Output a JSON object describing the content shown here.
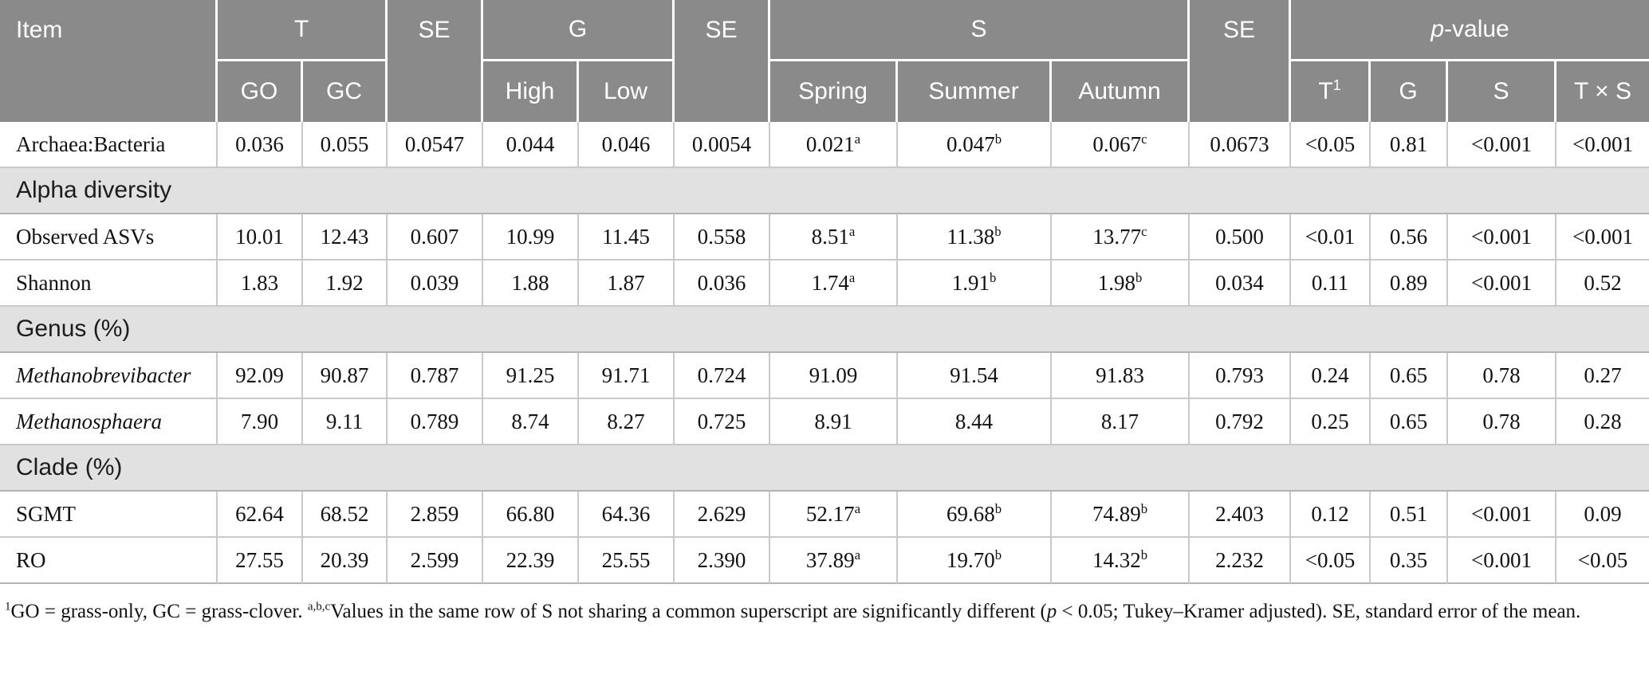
{
  "colors": {
    "header_bg": "#8a8a8a",
    "header_text": "#ffffff",
    "section_bg": "#e1e1e1",
    "grid_line": "#c9c9c9",
    "section_line": "#b3b3b3",
    "text": "#121212"
  },
  "header": {
    "item": "Item",
    "groups": {
      "t": "T",
      "se1": "SE",
      "g": "G",
      "se2": "SE",
      "s": "S",
      "se3": "SE",
      "pvalue_italic": "p",
      "pvalue_rest": "-value"
    },
    "sub": {
      "go": "GO",
      "gc": "GC",
      "high": "High",
      "low": "Low",
      "spring": "Spring",
      "summer": "Summer",
      "autumn": "Autumn",
      "t1_base": "T",
      "t1_sup": "1",
      "g": "G",
      "s": "S",
      "txs": "T × S"
    }
  },
  "table": {
    "column_keys": [
      "GO",
      "GC",
      "SE",
      "High",
      "Low",
      "SE",
      "Spring",
      "Summer",
      "Autumn",
      "SE",
      "T1",
      "G",
      "S",
      "TxS"
    ],
    "rows": [
      {
        "type": "data",
        "label": "Archaea:Bacteria",
        "italic": false,
        "values": [
          "0.036",
          "0.055",
          "0.0547",
          "0.044",
          "0.046",
          "0.0054",
          "0.021^a",
          "0.047^b",
          "0.067^c",
          "0.0673",
          "<0.05",
          "0.81",
          "<0.001",
          "<0.001"
        ]
      },
      {
        "type": "section",
        "label": "Alpha diversity"
      },
      {
        "type": "data",
        "label": "Observed ASVs",
        "italic": false,
        "values": [
          "10.01",
          "12.43",
          "0.607",
          "10.99",
          "11.45",
          "0.558",
          "8.51^a",
          "11.38^b",
          "13.77^c",
          "0.500",
          "<0.01",
          "0.56",
          "<0.001",
          "<0.001"
        ]
      },
      {
        "type": "data",
        "label": "Shannon",
        "italic": false,
        "values": [
          "1.83",
          "1.92",
          "0.039",
          "1.88",
          "1.87",
          "0.036",
          "1.74^a",
          "1.91^b",
          "1.98^b",
          "0.034",
          "0.11",
          "0.89",
          "<0.001",
          "0.52"
        ]
      },
      {
        "type": "section",
        "label": "Genus (%)"
      },
      {
        "type": "data",
        "label": "Methanobrevibacter",
        "italic": true,
        "values": [
          "92.09",
          "90.87",
          "0.787",
          "91.25",
          "91.71",
          "0.724",
          "91.09",
          "91.54",
          "91.83",
          "0.793",
          "0.24",
          "0.65",
          "0.78",
          "0.27"
        ]
      },
      {
        "type": "data",
        "label": "Methanosphaera",
        "italic": true,
        "values": [
          "7.90",
          "9.11",
          "0.789",
          "8.74",
          "8.27",
          "0.725",
          "8.91",
          "8.44",
          "8.17",
          "0.792",
          "0.25",
          "0.65",
          "0.78",
          "0.28"
        ]
      },
      {
        "type": "section",
        "label": "Clade (%)"
      },
      {
        "type": "data",
        "label": "SGMT",
        "italic": false,
        "values": [
          "62.64",
          "68.52",
          "2.859",
          "66.80",
          "64.36",
          "2.629",
          "52.17^a",
          "69.68^b",
          "74.89^b",
          "2.403",
          "0.12",
          "0.51",
          "<0.001",
          "0.09"
        ]
      },
      {
        "type": "data",
        "label": "RO",
        "italic": false,
        "values": [
          "27.55",
          "20.39",
          "2.599",
          "22.39",
          "25.55",
          "2.390",
          "37.89^a",
          "19.70^b",
          "14.32^b",
          "2.232",
          "<0.05",
          "0.35",
          "<0.001",
          "<0.05"
        ]
      }
    ]
  },
  "footnote": {
    "segments": [
      {
        "text": "1",
        "sup": true
      },
      {
        "text": "GO = grass-only, GC = grass-clover. "
      },
      {
        "text": "a,b,c",
        "sup": true
      },
      {
        "text": "Values in the same row of S not sharing a common superscript are significantly different ("
      },
      {
        "text": "p",
        "italic": true
      },
      {
        "text": " < 0.05; Tukey–Kramer adjusted). SE, standard error of the mean."
      }
    ]
  }
}
